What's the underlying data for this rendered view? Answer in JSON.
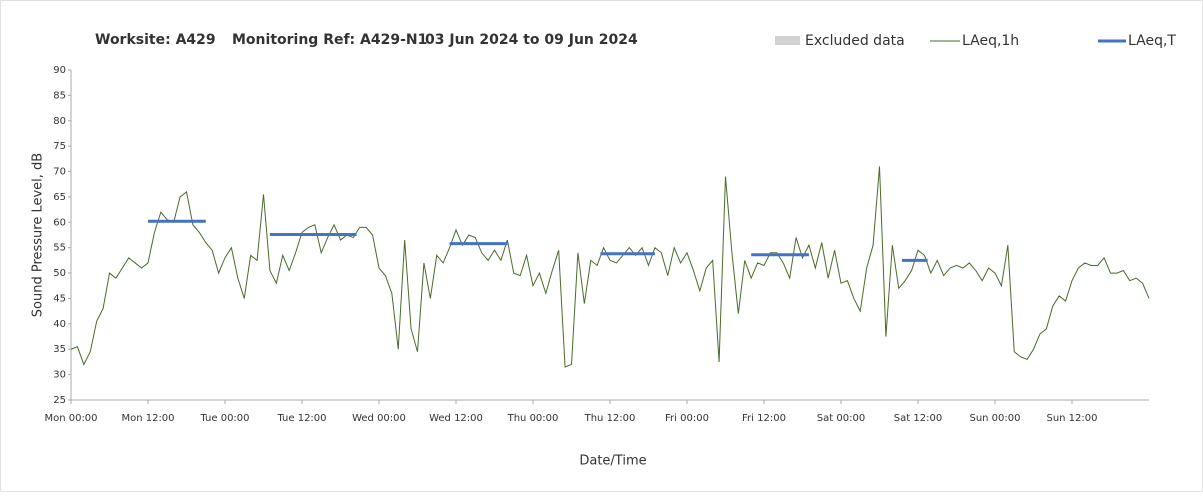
{
  "chart_data": {
    "type": "line",
    "title": [
      "Worksite: A429",
      "Monitoring Ref: A429-N1",
      "03 Jun 2024 to 09 Jun 2024"
    ],
    "x_label": "Date/Time",
    "y_label": "Sound Pressure Level, dB",
    "xlim": [
      0,
      168
    ],
    "xticks": [
      {
        "value": 0,
        "label": "Mon 00:00"
      },
      {
        "value": 12,
        "label": "Mon 12:00"
      },
      {
        "value": 24,
        "label": "Tue 00:00"
      },
      {
        "value": 36,
        "label": "Tue 12:00"
      },
      {
        "value": 48,
        "label": "Wed 00:00"
      },
      {
        "value": 60,
        "label": "Wed 12:00"
      },
      {
        "value": 72,
        "label": "Thu 00:00"
      },
      {
        "value": 84,
        "label": "Thu 12:00"
      },
      {
        "value": 96,
        "label": "Fri 00:00"
      },
      {
        "value": 108,
        "label": "Fri 12:00"
      },
      {
        "value": 120,
        "label": "Sat 00:00"
      },
      {
        "value": 132,
        "label": "Sat 12:00"
      },
      {
        "value": 144,
        "label": "Sun 00:00"
      },
      {
        "value": 156,
        "label": "Sun 12:00"
      }
    ],
    "ylim": [
      25,
      90
    ],
    "yticks": [
      25,
      30,
      35,
      40,
      45,
      50,
      55,
      60,
      65,
      70,
      75,
      80,
      85,
      90
    ],
    "grid": false,
    "excluded": {
      "name": "Excluded data",
      "color": "#d3d3d3"
    },
    "series": [
      {
        "name": "LAeq,1h",
        "color": "#4a6b2a",
        "x": [
          0,
          1,
          2,
          3,
          4,
          5,
          6,
          7,
          8,
          9,
          10,
          11,
          12,
          13,
          14,
          15,
          16,
          17,
          18,
          19,
          20,
          21,
          22,
          23,
          24,
          25,
          26,
          27,
          28,
          29,
          30,
          31,
          32,
          33,
          34,
          35,
          36,
          37,
          38,
          39,
          40,
          41,
          42,
          43,
          44,
          45,
          46,
          47,
          48,
          49,
          50,
          51,
          52,
          53,
          54,
          55,
          56,
          57,
          58,
          59,
          60,
          61,
          62,
          63,
          64,
          65,
          66,
          67,
          68,
          69,
          70,
          71,
          72,
          73,
          74,
          75,
          76,
          77,
          78,
          79,
          80,
          81,
          82,
          83,
          84,
          85,
          86,
          87,
          88,
          89,
          90,
          91,
          92,
          93,
          94,
          95,
          96,
          97,
          98,
          99,
          100,
          101,
          102,
          103,
          104,
          105,
          106,
          107,
          108,
          109,
          110,
          111,
          112,
          113,
          114,
          115,
          116,
          117,
          118,
          119,
          120,
          121,
          122,
          123,
          124,
          125,
          126,
          127,
          128,
          129,
          130,
          131,
          132,
          133,
          134,
          135,
          136,
          137,
          138,
          139,
          140,
          141,
          142,
          143,
          144,
          145,
          146,
          147,
          148,
          149,
          150,
          151,
          152,
          153,
          154,
          155,
          156,
          157,
          158,
          159,
          160,
          161,
          162,
          163,
          164,
          165,
          166,
          167,
          168
        ],
        "values": [
          35,
          35.5,
          32,
          34.5,
          40.5,
          43,
          50,
          49,
          51,
          53,
          52,
          51,
          52,
          58,
          62,
          60.5,
          60,
          65,
          66,
          59.5,
          58,
          56,
          54.5,
          50,
          53,
          55,
          49,
          45,
          53.5,
          52.5,
          65.5,
          50.5,
          48,
          53.5,
          50.5,
          54,
          58,
          59,
          59.5,
          54,
          57,
          59.5,
          56.5,
          57.5,
          57,
          59,
          59,
          57.5,
          51,
          49.5,
          46,
          35,
          56.5,
          39,
          34.5,
          52,
          45,
          53.5,
          52,
          55,
          58.5,
          55.5,
          57.5,
          57,
          54,
          52.5,
          54.5,
          52.5,
          56.5,
          50,
          49.5,
          53.5,
          47.5,
          50,
          46,
          50.5,
          54.5,
          31.5,
          32,
          54,
          44,
          52.5,
          51.5,
          55,
          52.5,
          52,
          53.5,
          55,
          53.5,
          55,
          51.5,
          55,
          54,
          49.5,
          55,
          52,
          54,
          50.5,
          46.5,
          51,
          52.5,
          32.5,
          69,
          54,
          42,
          52.5,
          49,
          52,
          51.5,
          54,
          54,
          52,
          49,
          57,
          53,
          55.5,
          51,
          56,
          49,
          54.5,
          48,
          48.5,
          45,
          42.5,
          51,
          55.5,
          71,
          37.5,
          55.5,
          47,
          48.5,
          50.5,
          54.5,
          53.5,
          50,
          52.5,
          49.5,
          51,
          51.5,
          51,
          52,
          50.5,
          48.5,
          51,
          50,
          47.5,
          55.5,
          34.5,
          33.5,
          33,
          35,
          38,
          39,
          43.5,
          45.5,
          44.5,
          48.5,
          51,
          52,
          51.5,
          51.5,
          53,
          50,
          50,
          50.5,
          48.5,
          49,
          48,
          45
        ]
      },
      {
        "name": "LAeq,T",
        "color": "#4472c4",
        "x_start": [
          12,
          31,
          59,
          82.5,
          106,
          129.5
        ],
        "x_end": [
          21,
          44.5,
          68,
          91,
          115,
          133.5
        ],
        "values": [
          60.2,
          57.6,
          55.8,
          53.8,
          53.6,
          52.5
        ]
      }
    ]
  }
}
